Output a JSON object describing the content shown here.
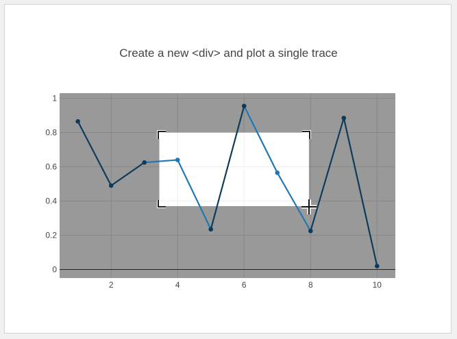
{
  "chart_data": {
    "type": "line",
    "title": "Create a new <div> and plot a single trace",
    "xlabel": "",
    "ylabel": "",
    "x": [
      1,
      2,
      3,
      4,
      5,
      6,
      7,
      8,
      9,
      10
    ],
    "series": [
      {
        "values": [
          0.865,
          0.49,
          0.625,
          0.64,
          0.235,
          0.955,
          0.565,
          0.225,
          0.885,
          0.02
        ]
      }
    ],
    "x_ticks": [
      "2",
      "4",
      "6",
      "8",
      "10"
    ],
    "y_ticks": [
      "0",
      "0.2",
      "0.4",
      "0.6",
      "0.8",
      "1"
    ],
    "xlim": [
      0.45,
      10.55
    ],
    "ylim": [
      -0.05,
      1.03
    ],
    "grid": true,
    "selection_box": {
      "x": [
        3.45,
        7.95
      ],
      "y": [
        0.37,
        0.8
      ]
    }
  },
  "colors": {
    "background": "#999999",
    "line_inside": "#1f77b4",
    "line_outside": "#0e3b5a",
    "selection_fill": "#ffffff",
    "grid": "#888888"
  },
  "cursor": "crosshair-move-icon"
}
